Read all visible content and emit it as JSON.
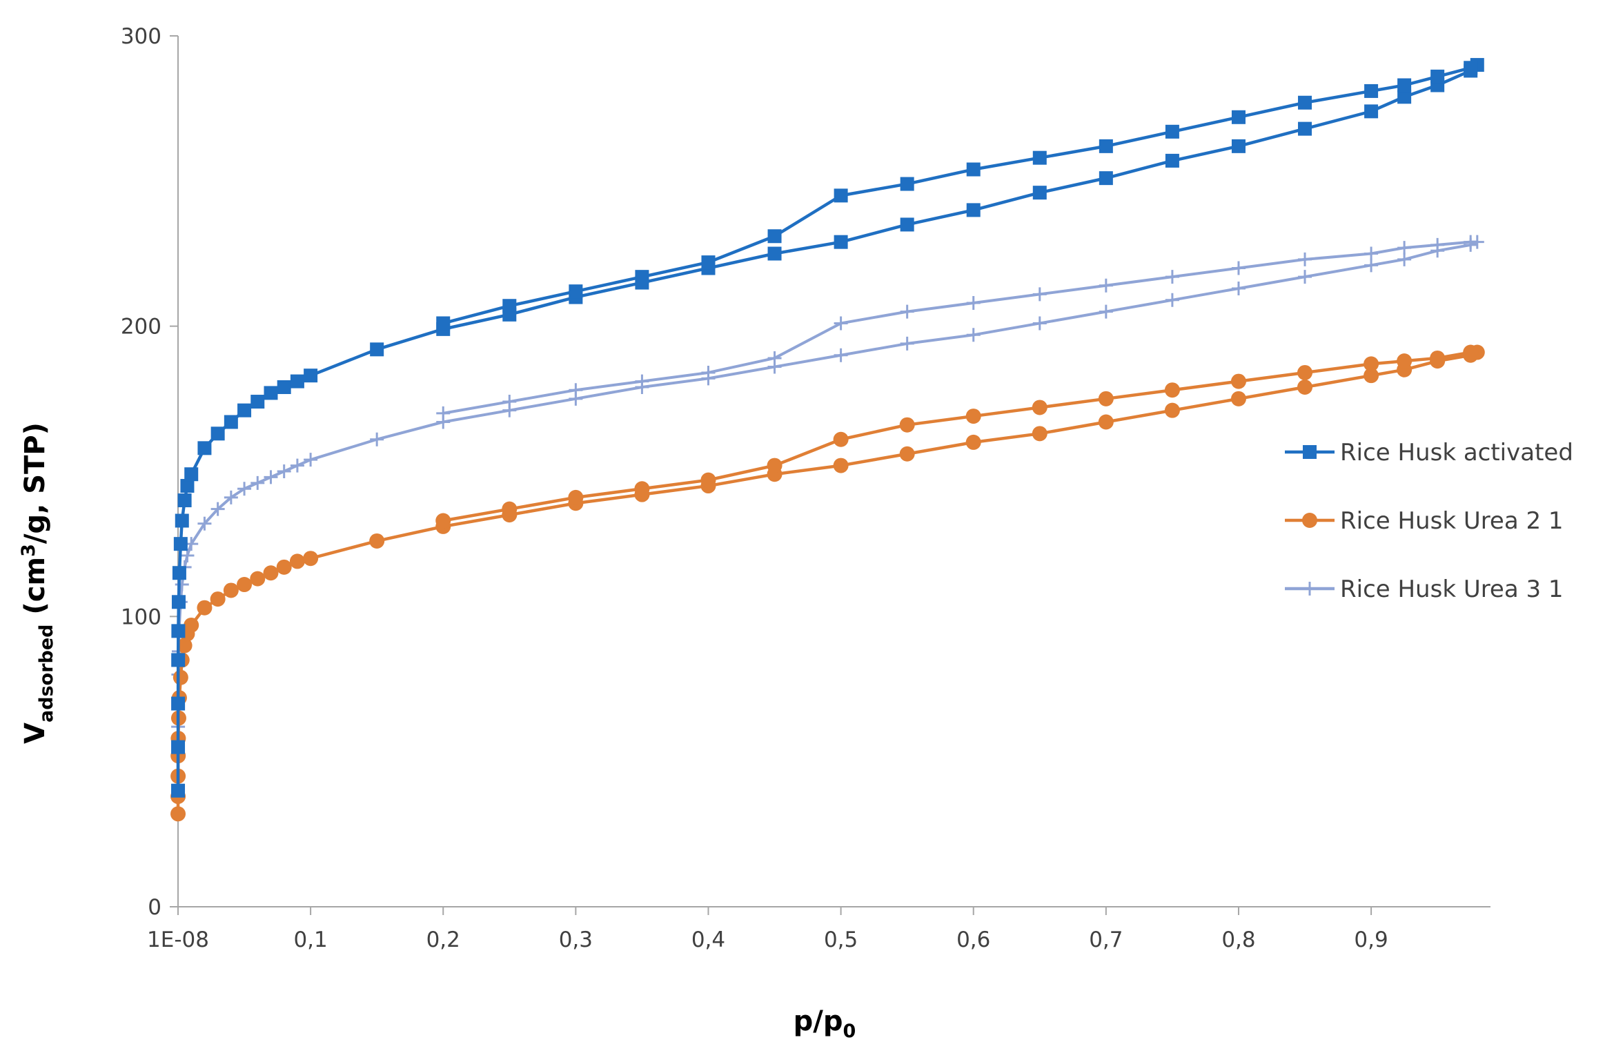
{
  "chart_data": {
    "type": "line",
    "title": "",
    "xlabel": {
      "main": "p/p",
      "sub": "0"
    },
    "ylabel": {
      "main": "V",
      "sub": "adsorbed",
      "rest_a": " (cm",
      "sup": "3",
      "rest_b": "/g, STP)"
    },
    "xlim": [
      0,
      0.99
    ],
    "ylim": [
      0,
      300
    ],
    "x_ticks": [
      {
        "value": 0,
        "label": "1E-08"
      },
      {
        "value": 0.1,
        "label": "0,1"
      },
      {
        "value": 0.2,
        "label": "0,2"
      },
      {
        "value": 0.3,
        "label": "0,3"
      },
      {
        "value": 0.4,
        "label": "0,4"
      },
      {
        "value": 0.5,
        "label": "0,5"
      },
      {
        "value": 0.6,
        "label": "0,6"
      },
      {
        "value": 0.7,
        "label": "0,7"
      },
      {
        "value": 0.8,
        "label": "0,8"
      },
      {
        "value": 0.9,
        "label": "0,9"
      }
    ],
    "y_ticks": [
      {
        "value": 0,
        "label": "0"
      },
      {
        "value": 100,
        "label": "100"
      },
      {
        "value": 200,
        "label": "200"
      },
      {
        "value": 300,
        "label": "300"
      }
    ],
    "grid": false,
    "legend_position": "right",
    "series": [
      {
        "name": "Rice Husk activated",
        "color": "#1f6fc2",
        "marker": "square",
        "points": [
          [
            1e-05,
            40
          ],
          [
            2e-05,
            55
          ],
          [
            5e-05,
            70
          ],
          [
            0.0001,
            85
          ],
          [
            0.0002,
            95
          ],
          [
            0.0005,
            105
          ],
          [
            0.001,
            115
          ],
          [
            0.002,
            125
          ],
          [
            0.003,
            133
          ],
          [
            0.005,
            140
          ],
          [
            0.007,
            145
          ],
          [
            0.01,
            149
          ],
          [
            0.02,
            158
          ],
          [
            0.03,
            163
          ],
          [
            0.04,
            167
          ],
          [
            0.05,
            171
          ],
          [
            0.06,
            174
          ],
          [
            0.07,
            177
          ],
          [
            0.08,
            179
          ],
          [
            0.09,
            181
          ],
          [
            0.1,
            183
          ],
          [
            0.15,
            192
          ],
          [
            0.2,
            199
          ],
          [
            0.25,
            204
          ],
          [
            0.3,
            210
          ],
          [
            0.35,
            215
          ],
          [
            0.4,
            220
          ],
          [
            0.45,
            225
          ],
          [
            0.5,
            229
          ],
          [
            0.55,
            235
          ],
          [
            0.6,
            240
          ],
          [
            0.65,
            246
          ],
          [
            0.7,
            251
          ],
          [
            0.75,
            257
          ],
          [
            0.8,
            262
          ],
          [
            0.85,
            268
          ],
          [
            0.9,
            274
          ],
          [
            0.925,
            279
          ],
          [
            0.95,
            283
          ],
          [
            0.975,
            288
          ],
          [
            0.98,
            290
          ],
          [
            0.975,
            289
          ],
          [
            0.95,
            286
          ],
          [
            0.925,
            283
          ],
          [
            0.9,
            281
          ],
          [
            0.85,
            277
          ],
          [
            0.8,
            272
          ],
          [
            0.75,
            267
          ],
          [
            0.7,
            262
          ],
          [
            0.65,
            258
          ],
          [
            0.6,
            254
          ],
          [
            0.55,
            249
          ],
          [
            0.5,
            245
          ],
          [
            0.45,
            231
          ],
          [
            0.4,
            222
          ],
          [
            0.35,
            217
          ],
          [
            0.3,
            212
          ],
          [
            0.25,
            207
          ],
          [
            0.2,
            201
          ]
        ]
      },
      {
        "name": "Rice Husk Urea 2 1",
        "color": "#e07f35",
        "marker": "circle",
        "points": [
          [
            1e-05,
            32
          ],
          [
            2e-05,
            38
          ],
          [
            5e-05,
            45
          ],
          [
            0.0001,
            52
          ],
          [
            0.0002,
            58
          ],
          [
            0.0005,
            65
          ],
          [
            0.001,
            72
          ],
          [
            0.002,
            79
          ],
          [
            0.003,
            85
          ],
          [
            0.005,
            90
          ],
          [
            0.007,
            94
          ],
          [
            0.01,
            97
          ],
          [
            0.02,
            103
          ],
          [
            0.03,
            106
          ],
          [
            0.04,
            109
          ],
          [
            0.05,
            111
          ],
          [
            0.06,
            113
          ],
          [
            0.07,
            115
          ],
          [
            0.08,
            117
          ],
          [
            0.09,
            119
          ],
          [
            0.1,
            120
          ],
          [
            0.15,
            126
          ],
          [
            0.2,
            131
          ],
          [
            0.25,
            135
          ],
          [
            0.3,
            139
          ],
          [
            0.35,
            142
          ],
          [
            0.4,
            145
          ],
          [
            0.45,
            149
          ],
          [
            0.5,
            152
          ],
          [
            0.55,
            156
          ],
          [
            0.6,
            160
          ],
          [
            0.65,
            163
          ],
          [
            0.7,
            167
          ],
          [
            0.75,
            171
          ],
          [
            0.8,
            175
          ],
          [
            0.85,
            179
          ],
          [
            0.9,
            183
          ],
          [
            0.925,
            185
          ],
          [
            0.95,
            188
          ],
          [
            0.975,
            190
          ],
          [
            0.98,
            191
          ],
          [
            0.975,
            191
          ],
          [
            0.95,
            189
          ],
          [
            0.925,
            188
          ],
          [
            0.9,
            187
          ],
          [
            0.85,
            184
          ],
          [
            0.8,
            181
          ],
          [
            0.75,
            178
          ],
          [
            0.7,
            175
          ],
          [
            0.65,
            172
          ],
          [
            0.6,
            169
          ],
          [
            0.55,
            166
          ],
          [
            0.5,
            161
          ],
          [
            0.45,
            152
          ],
          [
            0.4,
            147
          ],
          [
            0.35,
            144
          ],
          [
            0.3,
            141
          ],
          [
            0.25,
            137
          ],
          [
            0.2,
            133
          ]
        ]
      },
      {
        "name": "Rice Husk Urea 3 1",
        "color": "#8fa4d6",
        "marker": "plus",
        "points": [
          [
            1e-05,
            42
          ],
          [
            2e-05,
            52
          ],
          [
            5e-05,
            62
          ],
          [
            0.0001,
            72
          ],
          [
            0.0002,
            80
          ],
          [
            0.0005,
            88
          ],
          [
            0.001,
            97
          ],
          [
            0.002,
            105
          ],
          [
            0.003,
            111
          ],
          [
            0.005,
            117
          ],
          [
            0.007,
            121
          ],
          [
            0.01,
            125
          ],
          [
            0.02,
            132
          ],
          [
            0.03,
            137
          ],
          [
            0.04,
            141
          ],
          [
            0.05,
            144
          ],
          [
            0.06,
            146
          ],
          [
            0.07,
            148
          ],
          [
            0.08,
            150
          ],
          [
            0.09,
            152
          ],
          [
            0.1,
            154
          ],
          [
            0.15,
            161
          ],
          [
            0.2,
            167
          ],
          [
            0.25,
            171
          ],
          [
            0.3,
            175
          ],
          [
            0.35,
            179
          ],
          [
            0.4,
            182
          ],
          [
            0.45,
            186
          ],
          [
            0.5,
            190
          ],
          [
            0.55,
            194
          ],
          [
            0.6,
            197
          ],
          [
            0.65,
            201
          ],
          [
            0.7,
            205
          ],
          [
            0.75,
            209
          ],
          [
            0.8,
            213
          ],
          [
            0.85,
            217
          ],
          [
            0.9,
            221
          ],
          [
            0.925,
            223
          ],
          [
            0.95,
            226
          ],
          [
            0.975,
            228
          ],
          [
            0.98,
            229
          ],
          [
            0.975,
            229
          ],
          [
            0.95,
            228
          ],
          [
            0.925,
            227
          ],
          [
            0.9,
            225
          ],
          [
            0.85,
            223
          ],
          [
            0.8,
            220
          ],
          [
            0.75,
            217
          ],
          [
            0.7,
            214
          ],
          [
            0.65,
            211
          ],
          [
            0.6,
            208
          ],
          [
            0.55,
            205
          ],
          [
            0.5,
            201
          ],
          [
            0.45,
            189
          ],
          [
            0.4,
            184
          ],
          [
            0.35,
            181
          ],
          [
            0.3,
            178
          ],
          [
            0.25,
            174
          ],
          [
            0.2,
            170
          ]
        ]
      }
    ]
  }
}
